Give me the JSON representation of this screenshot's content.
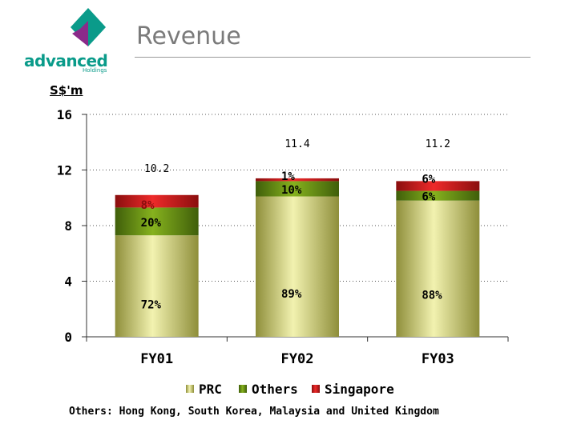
{
  "header": {
    "logo_word": "advanced",
    "logo_sub": "Holdings",
    "title": "Revenue",
    "unit": "S$'m"
  },
  "footnote": "Others: Hong Kong, South Korea, Malaysia and United Kingdom",
  "colors": {
    "PRC": "#e4e49a",
    "Others": "#6f9a14",
    "Singapore": "#d61a1a"
  },
  "chart_data": {
    "type": "bar",
    "stacked": true,
    "categories": [
      "FY01",
      "FY02",
      "FY03"
    ],
    "totals": [
      10.2,
      11.4,
      11.2
    ],
    "ylim": [
      0,
      16
    ],
    "yticks": [
      0,
      4,
      8,
      12,
      16
    ],
    "ylabel": "S$'m",
    "grid": true,
    "legend_position": "bottom",
    "series": [
      {
        "name": "PRC",
        "values": [
          7.3,
          10.1,
          9.8
        ],
        "percent_labels": [
          "72%",
          "89%",
          "88%"
        ]
      },
      {
        "name": "Others",
        "values": [
          2.0,
          1.1,
          0.7
        ],
        "percent_labels": [
          "20%",
          "10%",
          "6%"
        ]
      },
      {
        "name": "Singapore",
        "values": [
          0.9,
          0.2,
          0.7
        ],
        "percent_labels": [
          "8%",
          "1%",
          "6%"
        ]
      }
    ]
  }
}
